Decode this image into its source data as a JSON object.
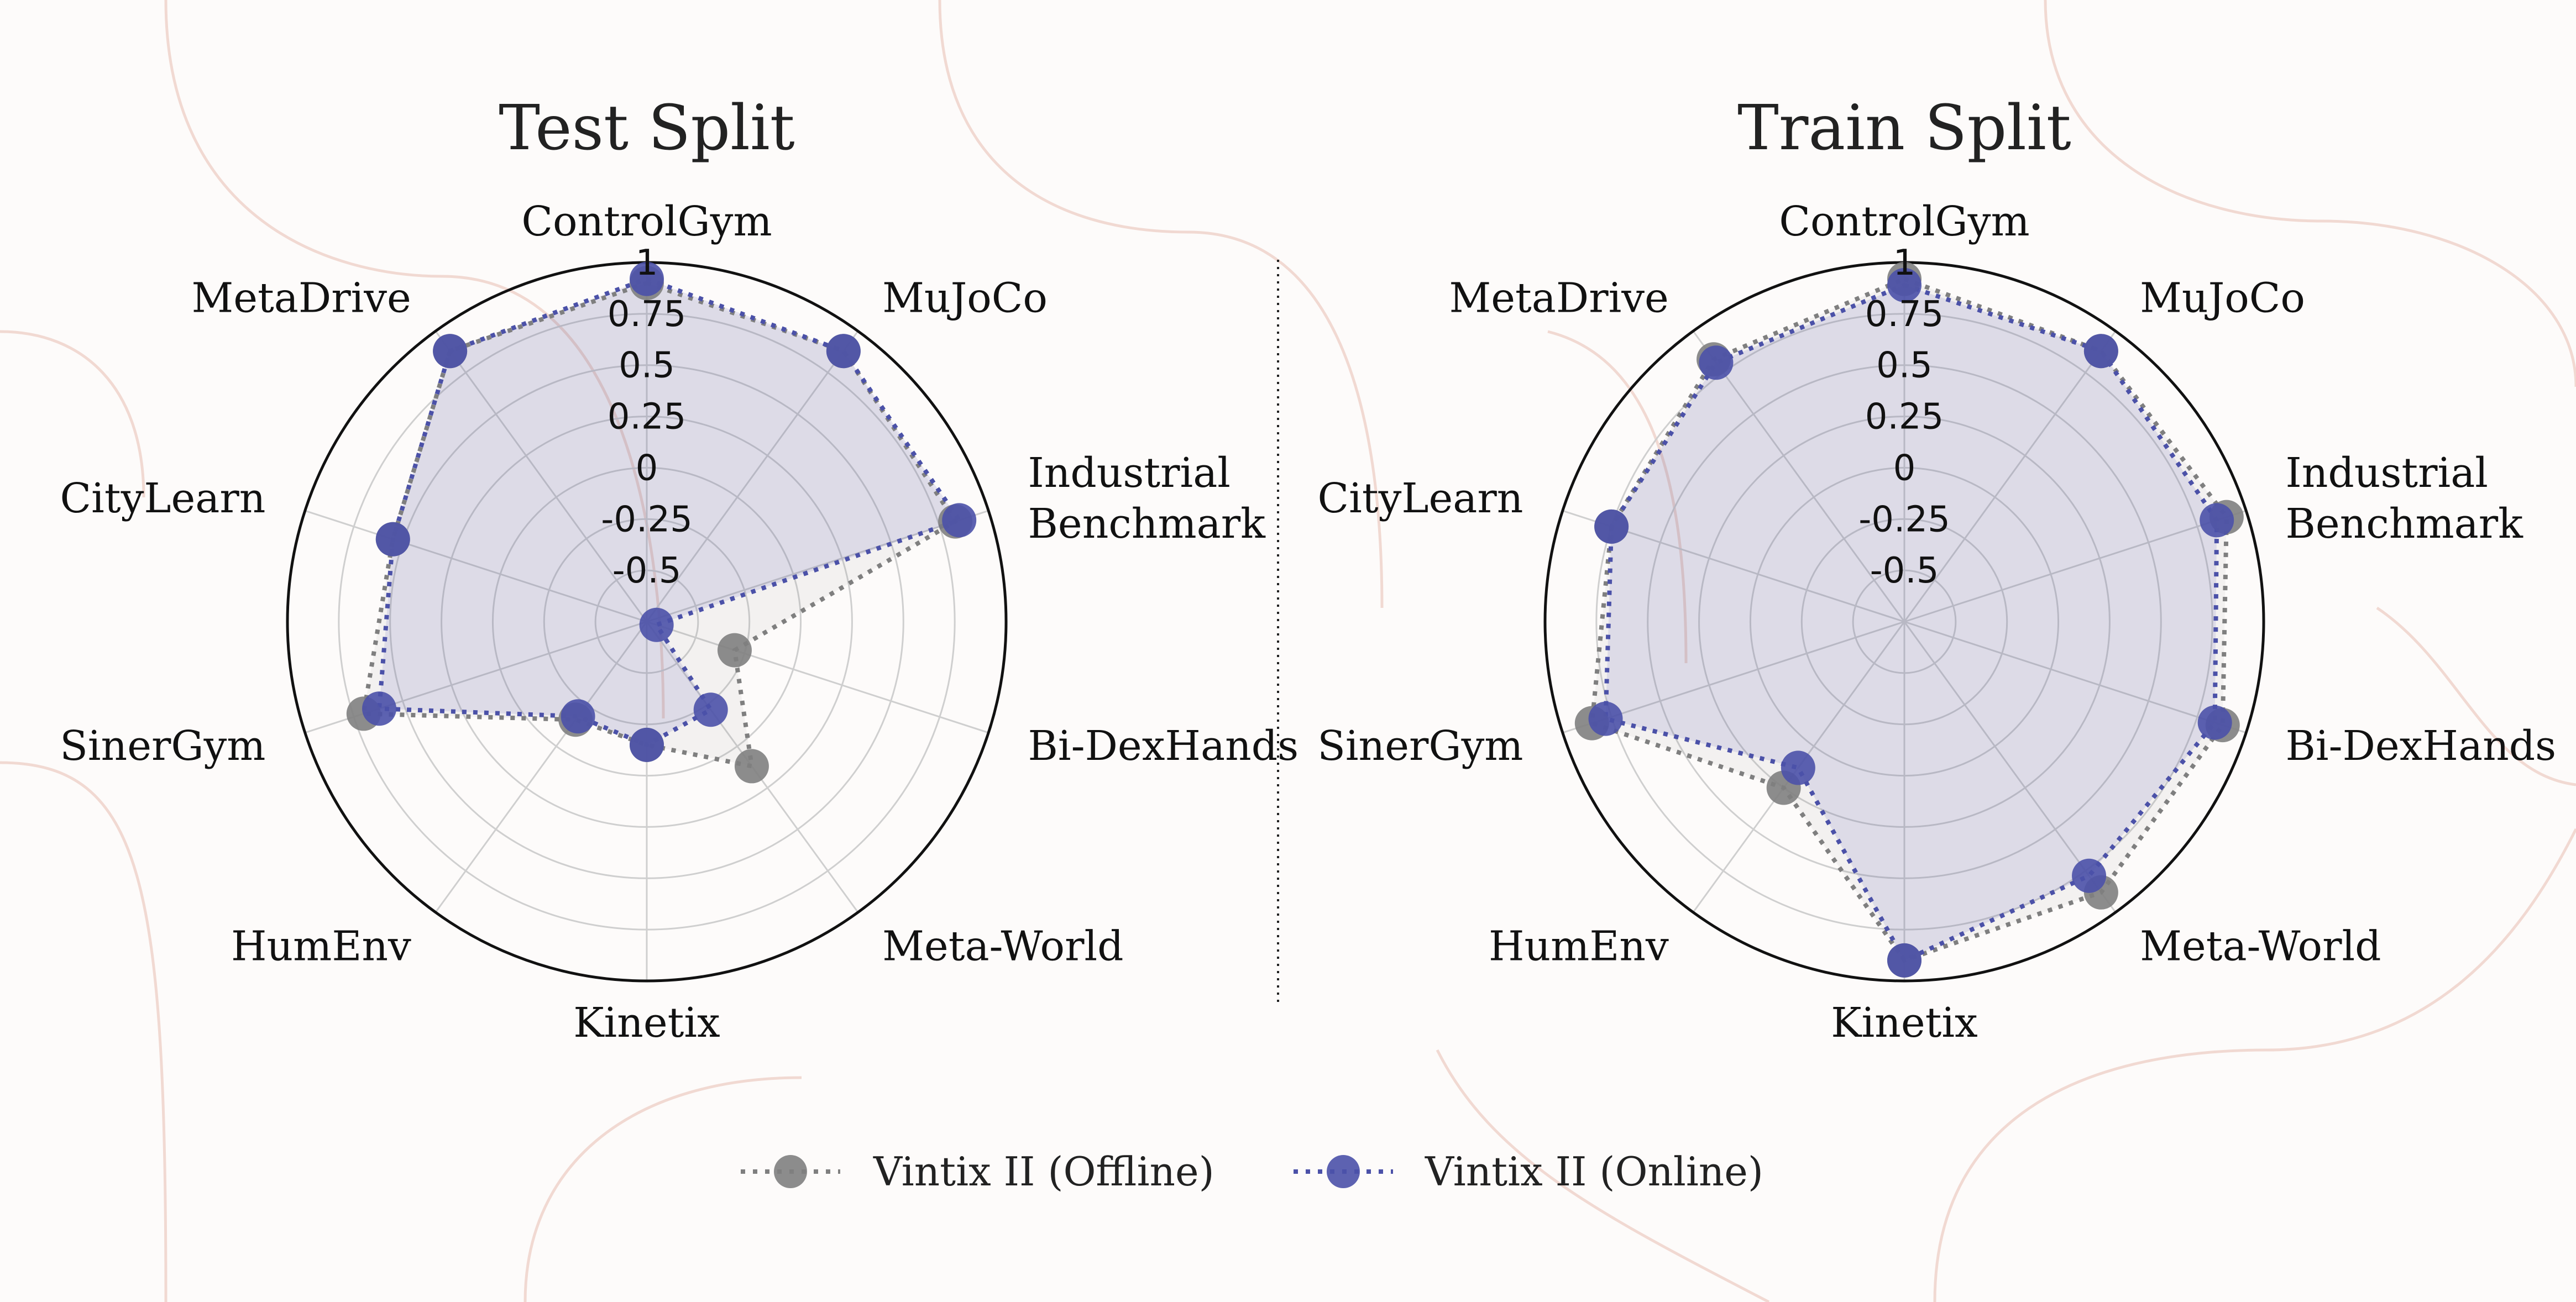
{
  "chart_data": [
    {
      "type": "radar",
      "title": "Test Split",
      "categories": [
        "ControlGym",
        "MuJoCo",
        "Industrial\nBenchmark",
        "Bi-DexHands",
        "Meta-World",
        "Kinetix",
        "HumEnv",
        "SinerGym",
        "CityLearn",
        "MetaDrive"
      ],
      "r_ticks": [
        "1",
        "0.75",
        "0.5",
        "0.25",
        "0",
        "-0.25",
        "-0.5"
      ],
      "rlim": [
        -0.75,
        1.0
      ],
      "series": [
        {
          "name": "Vintix II (Offline)",
          "color": "#7f7f7f",
          "values": [
            0.9,
            0.88,
            0.83,
            -0.3,
            0.12,
            -0.15,
            -0.16,
            0.7,
            0.55,
            0.88
          ]
        },
        {
          "name": "Vintix II (Online)",
          "color": "#4b51a8",
          "values": [
            0.92,
            0.88,
            0.85,
            -0.7,
            -0.22,
            -0.15,
            -0.18,
            0.62,
            0.55,
            0.88
          ]
        }
      ]
    },
    {
      "type": "radar",
      "title": "Train Split",
      "categories": [
        "ControlGym",
        "MuJoCo",
        "Industrial\nBenchmark",
        "Bi-DexHands",
        "Meta-World",
        "Kinetix",
        "HumEnv",
        "SinerGym",
        "CityLearn",
        "MetaDrive"
      ],
      "r_ticks": [
        "1",
        "0.75",
        "0.5",
        "0.25",
        "0",
        "-0.25",
        "-0.5"
      ],
      "rlim": [
        -0.75,
        1.0
      ],
      "series": [
        {
          "name": "Vintix II (Offline)",
          "color": "#7f7f7f",
          "values": [
            0.92,
            0.88,
            0.9,
            0.88,
            0.88,
            0.9,
            0.25,
            0.85,
            0.75,
            0.83
          ]
        },
        {
          "name": "Vintix II (Online)",
          "color": "#4b51a8",
          "values": [
            0.89,
            0.88,
            0.85,
            0.84,
            0.78,
            0.9,
            0.13,
            0.78,
            0.75,
            0.81
          ]
        }
      ]
    }
  ],
  "legend": {
    "offline_label": "Vintix II (Offline)",
    "online_label": "Vintix II (Online)",
    "offline_color": "#7f7f7f",
    "online_color": "#4b51a8"
  }
}
